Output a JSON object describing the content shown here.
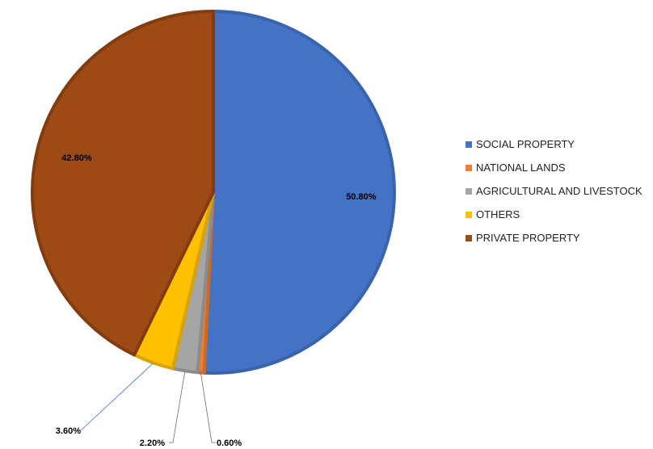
{
  "chart_data": {
    "type": "pie",
    "start_angle_deg": 0,
    "direction": "clockwise",
    "slices": [
      {
        "label": "SOCIAL PROPERTY",
        "value": 50.8,
        "display": "50.80%",
        "color": "#4472C4",
        "edge": "#3A63AD"
      },
      {
        "label": "NATIONAL LANDS",
        "value": 0.6,
        "display": "0.60%",
        "color": "#ED7D31",
        "edge": "#C9692A"
      },
      {
        "label": "AGRICULTURAL AND LIVESTOCK",
        "value": 2.2,
        "display": "2.20%",
        "color": "#A5A5A5",
        "edge": "#8C8C8C"
      },
      {
        "label": "OTHERS",
        "value": 3.6,
        "display": "3.60%",
        "color": "#FFC000",
        "edge": "#D9A300"
      },
      {
        "label": "PRIVATE PROPERTY",
        "value": 42.8,
        "display": "42.80%",
        "color": "#9E4A14",
        "edge": "#833C10"
      }
    ],
    "legend_position": "right"
  }
}
